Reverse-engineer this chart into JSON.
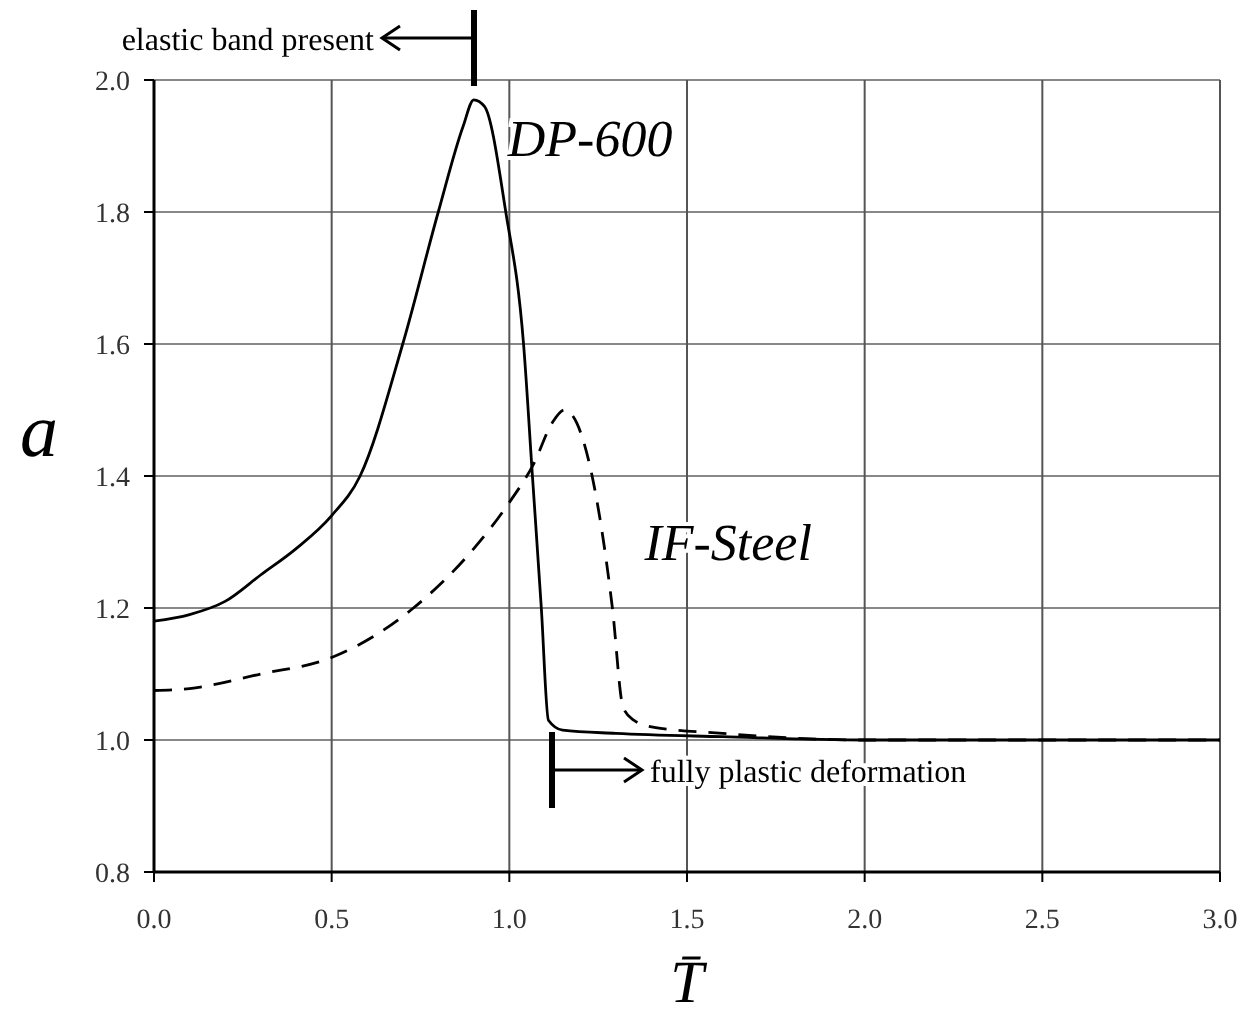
{
  "chart_data": {
    "type": "line",
    "xlabel": "T̄",
    "ylabel": "a",
    "xlim": [
      0,
      3
    ],
    "ylim": [
      0.8,
      2
    ],
    "xticks": [
      {
        "value": 0,
        "label": "0.0"
      },
      {
        "value": 0.5,
        "label": "0.5"
      },
      {
        "value": 1,
        "label": "1.0"
      },
      {
        "value": 1.5,
        "label": "1.5"
      },
      {
        "value": 2,
        "label": "2.0"
      },
      {
        "value": 2.5,
        "label": "2.5"
      },
      {
        "value": 3,
        "label": "3.0"
      }
    ],
    "yticks": [
      {
        "value": 0.8,
        "label": "0.8"
      },
      {
        "value": 1,
        "label": "1.0"
      },
      {
        "value": 1.2,
        "label": "1.2"
      },
      {
        "value": 1.4,
        "label": "1.4"
      },
      {
        "value": 1.6,
        "label": "1.6"
      },
      {
        "value": 1.8,
        "label": "1.8"
      },
      {
        "value": 2,
        "label": "2.0"
      }
    ],
    "grid": true,
    "series": [
      {
        "name": "DP-600",
        "color": "#000000",
        "line_style": "solid",
        "x": [
          0,
          0.1,
          0.2,
          0.3,
          0.4,
          0.5,
          0.58,
          0.7,
          0.8,
          0.87,
          0.9,
          0.93,
          0.99,
          1.04,
          1.065,
          1.09,
          1.11,
          1.15,
          1.3,
          1.6,
          2,
          3
        ],
        "values": [
          1.18,
          1.19,
          1.21,
          1.25,
          1.29,
          1.34,
          1.4,
          1.6,
          1.8,
          1.93,
          1.97,
          1.96,
          1.8,
          1.6,
          1.4,
          1.2,
          1.03,
          1.015,
          1.01,
          1.005,
          1,
          1
        ]
      },
      {
        "name": "IF-Steel",
        "color": "#000000",
        "line_style": "dashed",
        "x": [
          0,
          0.1,
          0.3,
          0.5,
          0.73,
          0.9,
          1,
          1.07,
          1.12,
          1.155,
          1.19,
          1.233,
          1.29,
          1.32,
          1.35,
          1.4,
          1.6,
          2,
          3
        ],
        "values": [
          1.075,
          1.078,
          1.1,
          1.125,
          1.2,
          1.29,
          1.36,
          1.42,
          1.48,
          1.5,
          1.48,
          1.4,
          1.2,
          1.05,
          1.03,
          1.02,
          1.01,
          1,
          1
        ]
      }
    ],
    "annotations": [
      "elastic band present",
      "fully plastic deformation"
    ]
  }
}
